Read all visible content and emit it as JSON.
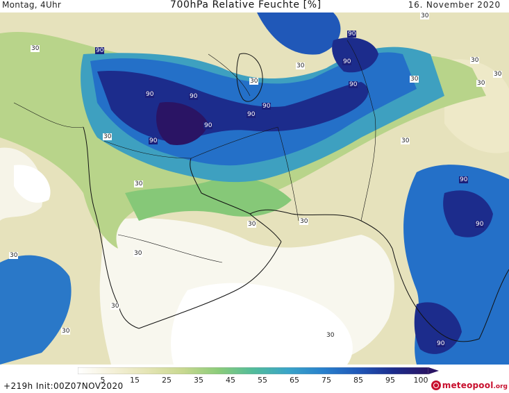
{
  "header": {
    "left": "Montag, 4Uhr",
    "center": "700hPa Relative Feuchte [%]",
    "right": "16. November 2020"
  },
  "footer": {
    "run": "+219h  Init:00Z07NOV2020",
    "logo_main": "meteopool",
    "logo_tld": ".org"
  },
  "legend": {
    "ticks": [
      "5",
      "15",
      "25",
      "35",
      "45",
      "55",
      "65",
      "75",
      "85",
      "95",
      "100"
    ],
    "colors": [
      "#ffffff",
      "#f4f0d8",
      "#e4e4b4",
      "#c8d890",
      "#8ccc7a",
      "#52bc9a",
      "#3aa4c8",
      "#2880cc",
      "#2058b8",
      "#1c2c8c",
      "#2a1464"
    ]
  },
  "contour_labels": [
    {
      "text": "90"
    },
    {
      "text": "90"
    },
    {
      "text": "90"
    },
    {
      "text": "90"
    },
    {
      "text": "90"
    },
    {
      "text": "90"
    },
    {
      "text": "90"
    },
    {
      "text": "90"
    },
    {
      "text": "90"
    },
    {
      "text": "90"
    },
    {
      "text": "90"
    },
    {
      "text": "90"
    },
    {
      "text": "90"
    },
    {
      "text": "30"
    },
    {
      "text": "30"
    },
    {
      "text": "30"
    },
    {
      "text": "30"
    },
    {
      "text": "30"
    },
    {
      "text": "30"
    },
    {
      "text": "30"
    },
    {
      "text": "30"
    },
    {
      "text": "30"
    },
    {
      "text": "30"
    },
    {
      "text": "30"
    },
    {
      "text": "30"
    },
    {
      "text": "30"
    },
    {
      "text": "30"
    },
    {
      "text": "30"
    },
    {
      "text": "30"
    },
    {
      "text": "30"
    },
    {
      "text": "30"
    }
  ]
}
